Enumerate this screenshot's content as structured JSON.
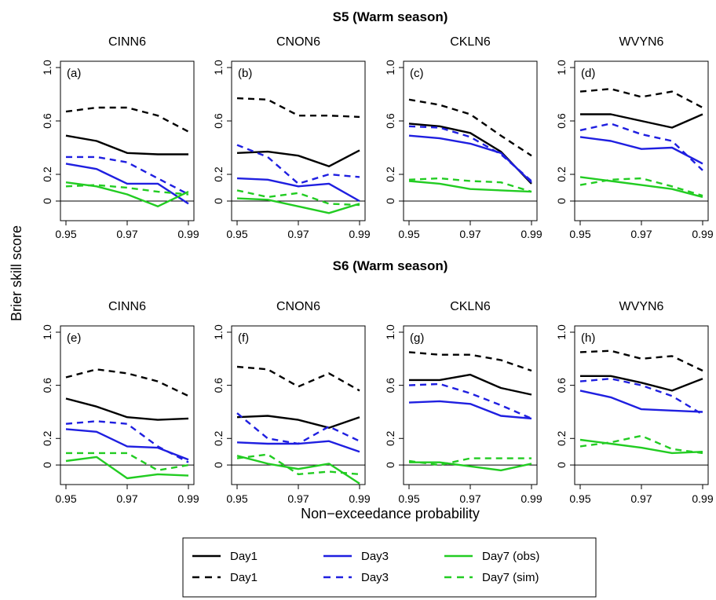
{
  "figure": {
    "ylabel": "Brier skill score",
    "xlabel": "Non−exceedance probability",
    "row_titles": [
      "S5 (Warm season)",
      "S6 (Warm season)"
    ]
  },
  "legend": {
    "entries": [
      {
        "label": "Day1",
        "color": "#000000",
        "dash": false
      },
      {
        "label": "Day1",
        "color": "#000000",
        "dash": true
      },
      {
        "label": "Day3",
        "color": "#1f1fe0",
        "dash": false
      },
      {
        "label": "Day3",
        "color": "#1f1fe0",
        "dash": true
      },
      {
        "label": "Day7 (obs)",
        "color": "#22cc22",
        "dash": false
      },
      {
        "label": "Day7 (sim)",
        "color": "#22cc22",
        "dash": true
      }
    ]
  },
  "chart_data": [
    {
      "type": "line",
      "panel": "(a)",
      "title": "CINN6",
      "x": [
        0.95,
        0.96,
        0.97,
        0.98,
        0.99
      ],
      "xticks": [
        "0.95",
        "0.97",
        "0.99"
      ],
      "yticks": [
        "0",
        "0.2",
        "0.6",
        "1.0"
      ],
      "ylim": [
        -0.1,
        1.0
      ],
      "zero_line": true,
      "series": [
        {
          "values": [
            0.49,
            0.45,
            0.36,
            0.35,
            0.35
          ],
          "color": "#000000",
          "dash": false
        },
        {
          "values": [
            0.67,
            0.7,
            0.7,
            0.64,
            0.52
          ],
          "color": "#000000",
          "dash": true
        },
        {
          "values": [
            0.28,
            0.24,
            0.13,
            0.13,
            -0.02
          ],
          "color": "#1f1fe0",
          "dash": false
        },
        {
          "values": [
            0.33,
            0.33,
            0.29,
            0.17,
            0.05
          ],
          "color": "#1f1fe0",
          "dash": true
        },
        {
          "values": [
            0.14,
            0.11,
            0.05,
            -0.04,
            0.07
          ],
          "color": "#22cc22",
          "dash": false
        },
        {
          "values": [
            0.11,
            0.12,
            0.1,
            0.07,
            0.05
          ],
          "color": "#22cc22",
          "dash": true
        }
      ]
    },
    {
      "type": "line",
      "panel": "(b)",
      "title": "CNON6",
      "x": [
        0.95,
        0.96,
        0.97,
        0.98,
        0.99
      ],
      "xticks": [
        "0.95",
        "0.97",
        "0.99"
      ],
      "yticks": [
        "0",
        "0.2",
        "0.6",
        "1.0"
      ],
      "ylim": [
        -0.1,
        1.0
      ],
      "zero_line": true,
      "series": [
        {
          "values": [
            0.36,
            0.37,
            0.34,
            0.26,
            0.38
          ],
          "color": "#000000",
          "dash": false
        },
        {
          "values": [
            0.77,
            0.76,
            0.64,
            0.64,
            0.63
          ],
          "color": "#000000",
          "dash": true
        },
        {
          "values": [
            0.17,
            0.16,
            0.11,
            0.13,
            0.0
          ],
          "color": "#1f1fe0",
          "dash": false
        },
        {
          "values": [
            0.42,
            0.33,
            0.13,
            0.2,
            0.18
          ],
          "color": "#1f1fe0",
          "dash": true
        },
        {
          "values": [
            0.02,
            0.01,
            -0.04,
            -0.09,
            -0.02
          ],
          "color": "#22cc22",
          "dash": false
        },
        {
          "values": [
            0.08,
            0.03,
            0.06,
            -0.02,
            -0.03
          ],
          "color": "#22cc22",
          "dash": true
        }
      ]
    },
    {
      "type": "line",
      "panel": "(c)",
      "title": "CKLN6",
      "x": [
        0.95,
        0.96,
        0.97,
        0.98,
        0.99
      ],
      "xticks": [
        "0.95",
        "0.97",
        "0.99"
      ],
      "yticks": [
        "0",
        "0.2",
        "0.6",
        "1.0"
      ],
      "ylim": [
        -0.1,
        1.0
      ],
      "zero_line": true,
      "series": [
        {
          "values": [
            0.58,
            0.56,
            0.51,
            0.37,
            0.13
          ],
          "color": "#000000",
          "dash": false
        },
        {
          "values": [
            0.76,
            0.72,
            0.65,
            0.49,
            0.34
          ],
          "color": "#000000",
          "dash": true
        },
        {
          "values": [
            0.49,
            0.47,
            0.43,
            0.36,
            0.14
          ],
          "color": "#1f1fe0",
          "dash": false
        },
        {
          "values": [
            0.56,
            0.55,
            0.48,
            0.35,
            0.15
          ],
          "color": "#1f1fe0",
          "dash": true
        },
        {
          "values": [
            0.15,
            0.13,
            0.09,
            0.08,
            0.07
          ],
          "color": "#22cc22",
          "dash": false
        },
        {
          "values": [
            0.16,
            0.17,
            0.15,
            0.14,
            0.07
          ],
          "color": "#22cc22",
          "dash": true
        }
      ]
    },
    {
      "type": "line",
      "panel": "(d)",
      "title": "WVYN6",
      "x": [
        0.95,
        0.96,
        0.97,
        0.98,
        0.99
      ],
      "xticks": [
        "0.95",
        "0.97",
        "0.99"
      ],
      "yticks": [
        "0",
        "0.2",
        "0.6",
        "1.0"
      ],
      "ylim": [
        -0.1,
        1.0
      ],
      "zero_line": true,
      "series": [
        {
          "values": [
            0.65,
            0.65,
            0.6,
            0.55,
            0.65
          ],
          "color": "#000000",
          "dash": false
        },
        {
          "values": [
            0.82,
            0.84,
            0.78,
            0.82,
            0.7
          ],
          "color": "#000000",
          "dash": true
        },
        {
          "values": [
            0.48,
            0.45,
            0.39,
            0.4,
            0.28
          ],
          "color": "#1f1fe0",
          "dash": false
        },
        {
          "values": [
            0.53,
            0.58,
            0.5,
            0.45,
            0.23
          ],
          "color": "#1f1fe0",
          "dash": true
        },
        {
          "values": [
            0.18,
            0.15,
            0.12,
            0.09,
            0.03
          ],
          "color": "#22cc22",
          "dash": false
        },
        {
          "values": [
            0.12,
            0.16,
            0.17,
            0.11,
            0.04
          ],
          "color": "#22cc22",
          "dash": true
        }
      ]
    },
    {
      "type": "line",
      "panel": "(e)",
      "title": "CINN6",
      "x": [
        0.95,
        0.96,
        0.97,
        0.98,
        0.99
      ],
      "xticks": [
        "0.95",
        "0.97",
        "0.99"
      ],
      "yticks": [
        "0",
        "0.2",
        "0.6",
        "1.0"
      ],
      "ylim": [
        -0.1,
        1.0
      ],
      "zero_line": true,
      "series": [
        {
          "values": [
            0.5,
            0.44,
            0.36,
            0.34,
            0.35
          ],
          "color": "#000000",
          "dash": false
        },
        {
          "values": [
            0.66,
            0.72,
            0.69,
            0.63,
            0.52
          ],
          "color": "#000000",
          "dash": true
        },
        {
          "values": [
            0.27,
            0.25,
            0.14,
            0.13,
            0.04
          ],
          "color": "#1f1fe0",
          "dash": false
        },
        {
          "values": [
            0.31,
            0.33,
            0.31,
            0.14,
            0.02
          ],
          "color": "#1f1fe0",
          "dash": true
        },
        {
          "values": [
            0.03,
            0.06,
            -0.1,
            -0.07,
            -0.08
          ],
          "color": "#22cc22",
          "dash": false
        },
        {
          "values": [
            0.09,
            0.09,
            0.09,
            -0.04,
            0.0
          ],
          "color": "#22cc22",
          "dash": true
        }
      ]
    },
    {
      "type": "line",
      "panel": "(f)",
      "title": "CNON6",
      "x": [
        0.95,
        0.96,
        0.97,
        0.98,
        0.99
      ],
      "xticks": [
        "0.95",
        "0.97",
        "0.99"
      ],
      "yticks": [
        "0",
        "0.2",
        "0.6",
        "1.0"
      ],
      "ylim": [
        -0.1,
        1.0
      ],
      "zero_line": true,
      "series": [
        {
          "values": [
            0.36,
            0.37,
            0.34,
            0.28,
            0.36
          ],
          "color": "#000000",
          "dash": false
        },
        {
          "values": [
            0.74,
            0.72,
            0.59,
            0.69,
            0.56
          ],
          "color": "#000000",
          "dash": true
        },
        {
          "values": [
            0.17,
            0.16,
            0.16,
            0.18,
            0.1
          ],
          "color": "#1f1fe0",
          "dash": false
        },
        {
          "values": [
            0.39,
            0.2,
            0.16,
            0.29,
            0.18
          ],
          "color": "#1f1fe0",
          "dash": true
        },
        {
          "values": [
            0.07,
            0.01,
            -0.03,
            0.01,
            -0.14
          ],
          "color": "#22cc22",
          "dash": false
        },
        {
          "values": [
            0.05,
            0.08,
            -0.07,
            -0.05,
            -0.07
          ],
          "color": "#22cc22",
          "dash": true
        }
      ]
    },
    {
      "type": "line",
      "panel": "(g)",
      "title": "CKLN6",
      "x": [
        0.95,
        0.96,
        0.97,
        0.98,
        0.99
      ],
      "xticks": [
        "0.95",
        "0.97",
        "0.99"
      ],
      "yticks": [
        "0",
        "0.2",
        "0.6",
        "1.0"
      ],
      "ylim": [
        -0.1,
        1.0
      ],
      "zero_line": true,
      "series": [
        {
          "values": [
            0.64,
            0.64,
            0.68,
            0.58,
            0.53
          ],
          "color": "#000000",
          "dash": false
        },
        {
          "values": [
            0.85,
            0.83,
            0.83,
            0.79,
            0.71
          ],
          "color": "#000000",
          "dash": true
        },
        {
          "values": [
            0.47,
            0.48,
            0.46,
            0.37,
            0.35
          ],
          "color": "#1f1fe0",
          "dash": false
        },
        {
          "values": [
            0.6,
            0.61,
            0.54,
            0.45,
            0.35
          ],
          "color": "#1f1fe0",
          "dash": true
        },
        {
          "values": [
            0.02,
            0.02,
            -0.01,
            -0.04,
            0.01
          ],
          "color": "#22cc22",
          "dash": false
        },
        {
          "values": [
            0.03,
            0.0,
            0.05,
            0.05,
            0.05
          ],
          "color": "#22cc22",
          "dash": true
        }
      ]
    },
    {
      "type": "line",
      "panel": "(h)",
      "title": "WVYN6",
      "x": [
        0.95,
        0.96,
        0.97,
        0.98,
        0.99
      ],
      "xticks": [
        "0.95",
        "0.97",
        "0.99"
      ],
      "yticks": [
        "0",
        "0.2",
        "0.6",
        "1.0"
      ],
      "ylim": [
        -0.1,
        1.0
      ],
      "zero_line": true,
      "series": [
        {
          "values": [
            0.67,
            0.67,
            0.62,
            0.56,
            0.65
          ],
          "color": "#000000",
          "dash": false
        },
        {
          "values": [
            0.85,
            0.86,
            0.8,
            0.82,
            0.71
          ],
          "color": "#000000",
          "dash": true
        },
        {
          "values": [
            0.56,
            0.51,
            0.42,
            0.41,
            0.4
          ],
          "color": "#1f1fe0",
          "dash": false
        },
        {
          "values": [
            0.63,
            0.65,
            0.6,
            0.52,
            0.38
          ],
          "color": "#1f1fe0",
          "dash": true
        },
        {
          "values": [
            0.19,
            0.16,
            0.13,
            0.09,
            0.1
          ],
          "color": "#22cc22",
          "dash": false
        },
        {
          "values": [
            0.14,
            0.17,
            0.22,
            0.12,
            0.09
          ],
          "color": "#22cc22",
          "dash": true
        }
      ]
    }
  ]
}
